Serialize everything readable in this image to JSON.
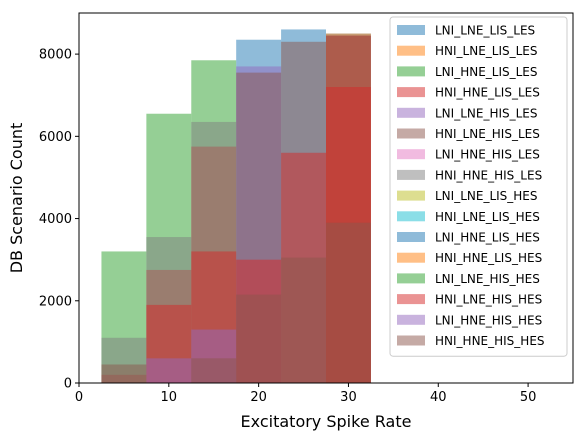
{
  "chart_data": {
    "type": "bar",
    "variant": "overlapping-histogram",
    "title": "",
    "xlabel": "Excitatory Spike Rate",
    "ylabel": "DB Scenario Count",
    "xlim": [
      0,
      55
    ],
    "ylim": [
      0,
      9000
    ],
    "xticks": [
      0,
      10,
      20,
      30,
      40,
      50
    ],
    "yticks": [
      0,
      2000,
      4000,
      6000,
      8000
    ],
    "bins": [
      [
        2.5,
        7.5
      ],
      [
        7.5,
        12.5
      ],
      [
        12.5,
        17.5
      ],
      [
        17.5,
        22.5
      ],
      [
        22.5,
        27.5
      ],
      [
        27.5,
        32.5
      ]
    ],
    "bar_alpha": 0.5,
    "legend_position": "right",
    "series": [
      {
        "name": "LNI_LNE_LIS_LES",
        "color": "#1f77b4",
        "values": [
          0,
          0,
          0,
          8350,
          8600,
          8500
        ]
      },
      {
        "name": "HNI_LNE_LIS_LES",
        "color": "#ff7f0e",
        "values": [
          0,
          0,
          0,
          0,
          0,
          8500
        ]
      },
      {
        "name": "LNI_HNE_LIS_LES",
        "color": "#2ca02c",
        "values": [
          3200,
          6550,
          7850,
          0,
          0,
          0
        ]
      },
      {
        "name": "HNI_HNE_LIS_LES",
        "color": "#d62728",
        "values": [
          200,
          2750,
          5750,
          0,
          0,
          8450
        ]
      },
      {
        "name": "LNI_LNE_HIS_LES",
        "color": "#9467bd",
        "values": [
          0,
          0,
          0,
          7700,
          0,
          0
        ]
      },
      {
        "name": "HNI_LNE_HIS_LES",
        "color": "#8c564b",
        "values": [
          0,
          0,
          0,
          7550,
          8300,
          8450
        ]
      },
      {
        "name": "LNI_HNE_HIS_LES",
        "color": "#e377c2",
        "values": [
          0,
          0,
          0,
          0,
          0,
          0
        ]
      },
      {
        "name": "HNI_HNE_HIS_LES",
        "color": "#7f7f7f",
        "values": [
          1100,
          3550,
          6350,
          0,
          0,
          0
        ]
      },
      {
        "name": "LNI_LNE_LIS_HES",
        "color": "#bcbd22",
        "values": [
          0,
          0,
          0,
          0,
          0,
          0
        ]
      },
      {
        "name": "HNI_LNE_LIS_HES",
        "color": "#17becf",
        "values": [
          0,
          0,
          0,
          0,
          0,
          0
        ]
      },
      {
        "name": "LNI_HNE_LIS_HES",
        "color": "#1f77b4",
        "values": [
          0,
          0,
          0,
          0,
          0,
          0
        ]
      },
      {
        "name": "HNI_HNE_LIS_HES",
        "color": "#ff7f0e",
        "values": [
          0,
          0,
          0,
          0,
          0,
          0
        ]
      },
      {
        "name": "LNI_LNE_HIS_HES",
        "color": "#2ca02c",
        "values": [
          0,
          0,
          0,
          0,
          0,
          0
        ]
      },
      {
        "name": "HNI_LNE_HIS_HES",
        "color": "#d62728",
        "values": [
          0,
          1900,
          3200,
          3000,
          5600,
          7200
        ]
      },
      {
        "name": "LNI_HNE_HIS_HES",
        "color": "#9467bd",
        "values": [
          0,
          600,
          1300,
          0,
          0,
          0
        ]
      },
      {
        "name": "HNI_HNE_HIS_HES",
        "color": "#8c564b",
        "values": [
          450,
          0,
          600,
          2150,
          3050,
          3900
        ]
      }
    ]
  }
}
